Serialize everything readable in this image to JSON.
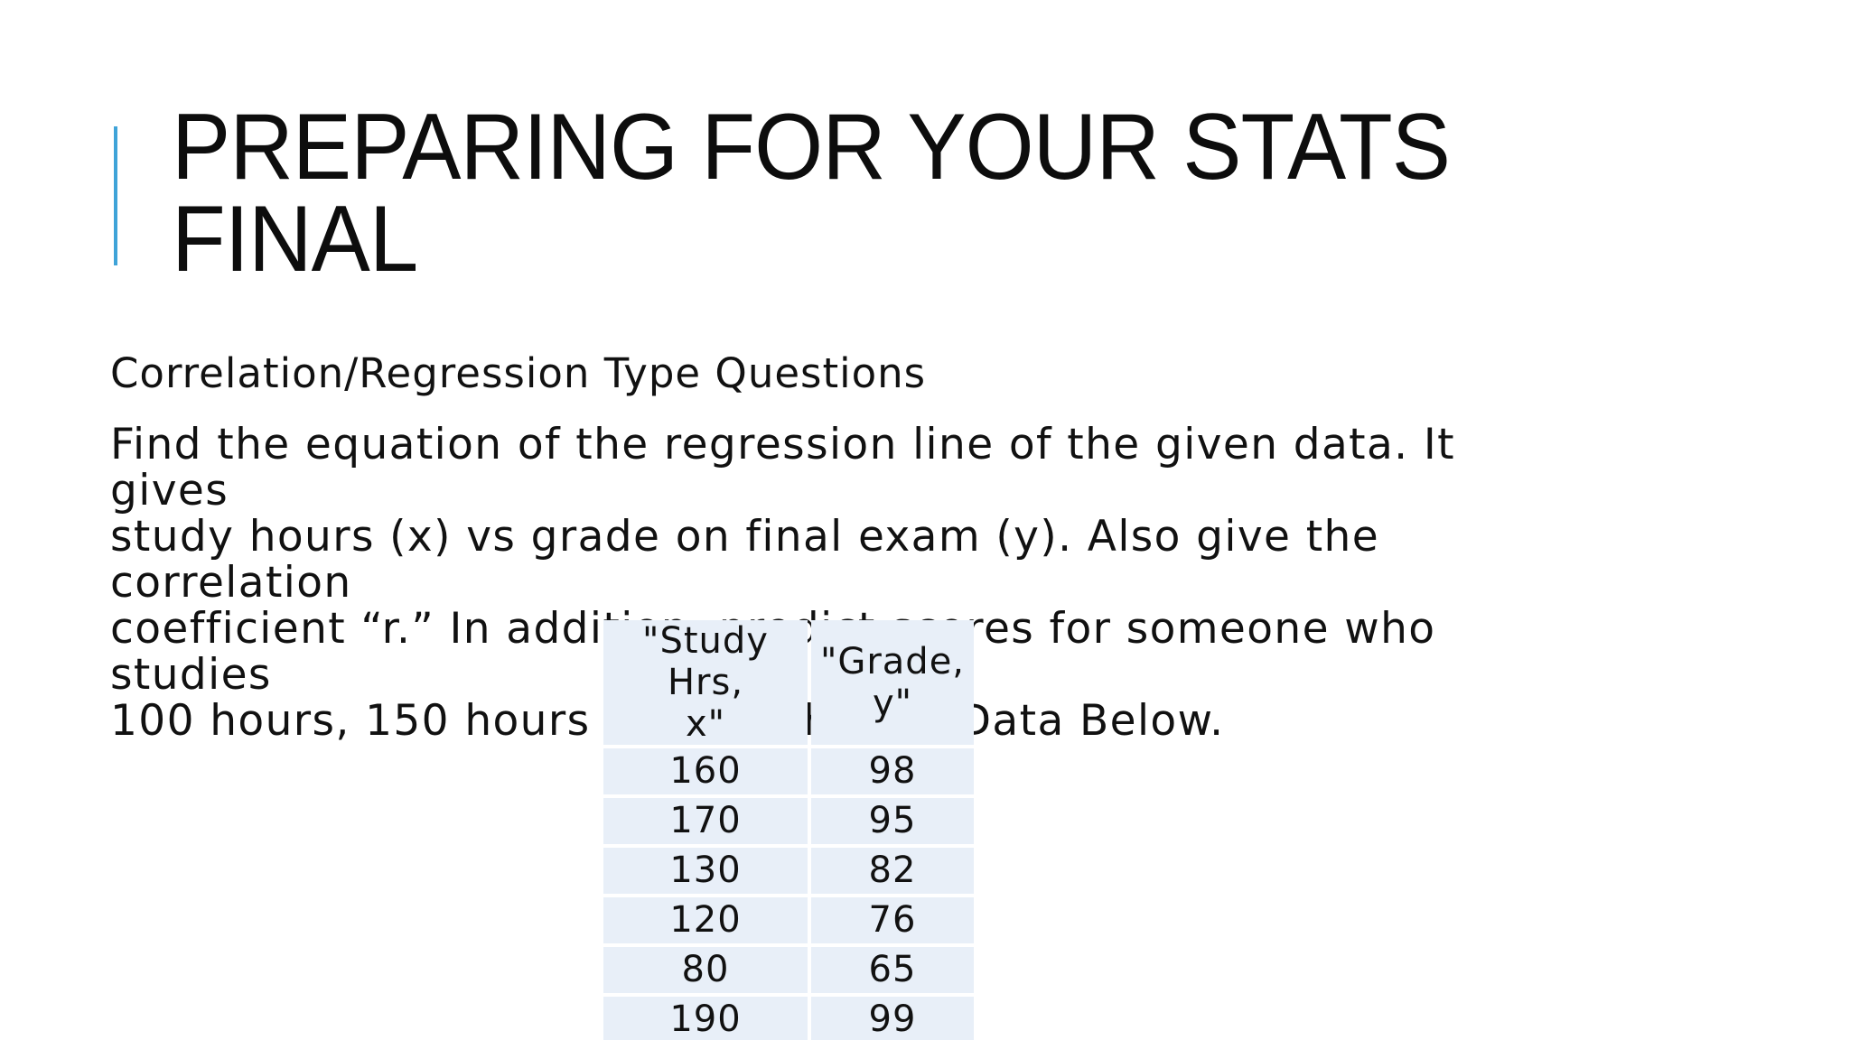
{
  "slide": {
    "title_line1": "PREPARING FOR YOUR STATS",
    "title_line2": "FINAL",
    "subheading": "Correlation/Regression Type Questions",
    "question": [
      "Find the equation of the regression line of the given data. It gives",
      "study hours (x) vs grade on final exam (y). Also give the correlation",
      "coefficient “r.” In addition, predict scores for someone who studies",
      "100 hours, 150 hours and 300 hours. Data Below."
    ],
    "accent_color": "#3fa3d8",
    "table_cell_color": "#e8eff8"
  },
  "table": {
    "headers": [
      {
        "line1": "\"Study Hrs,",
        "line2": "x\""
      },
      {
        "line1": "\"Grade,",
        "line2": "y\""
      }
    ],
    "rows": [
      [
        "160",
        "98"
      ],
      [
        "170",
        "95"
      ],
      [
        "130",
        "82"
      ],
      [
        "120",
        "76"
      ],
      [
        "80",
        "65"
      ],
      [
        "190",
        "99"
      ]
    ]
  }
}
